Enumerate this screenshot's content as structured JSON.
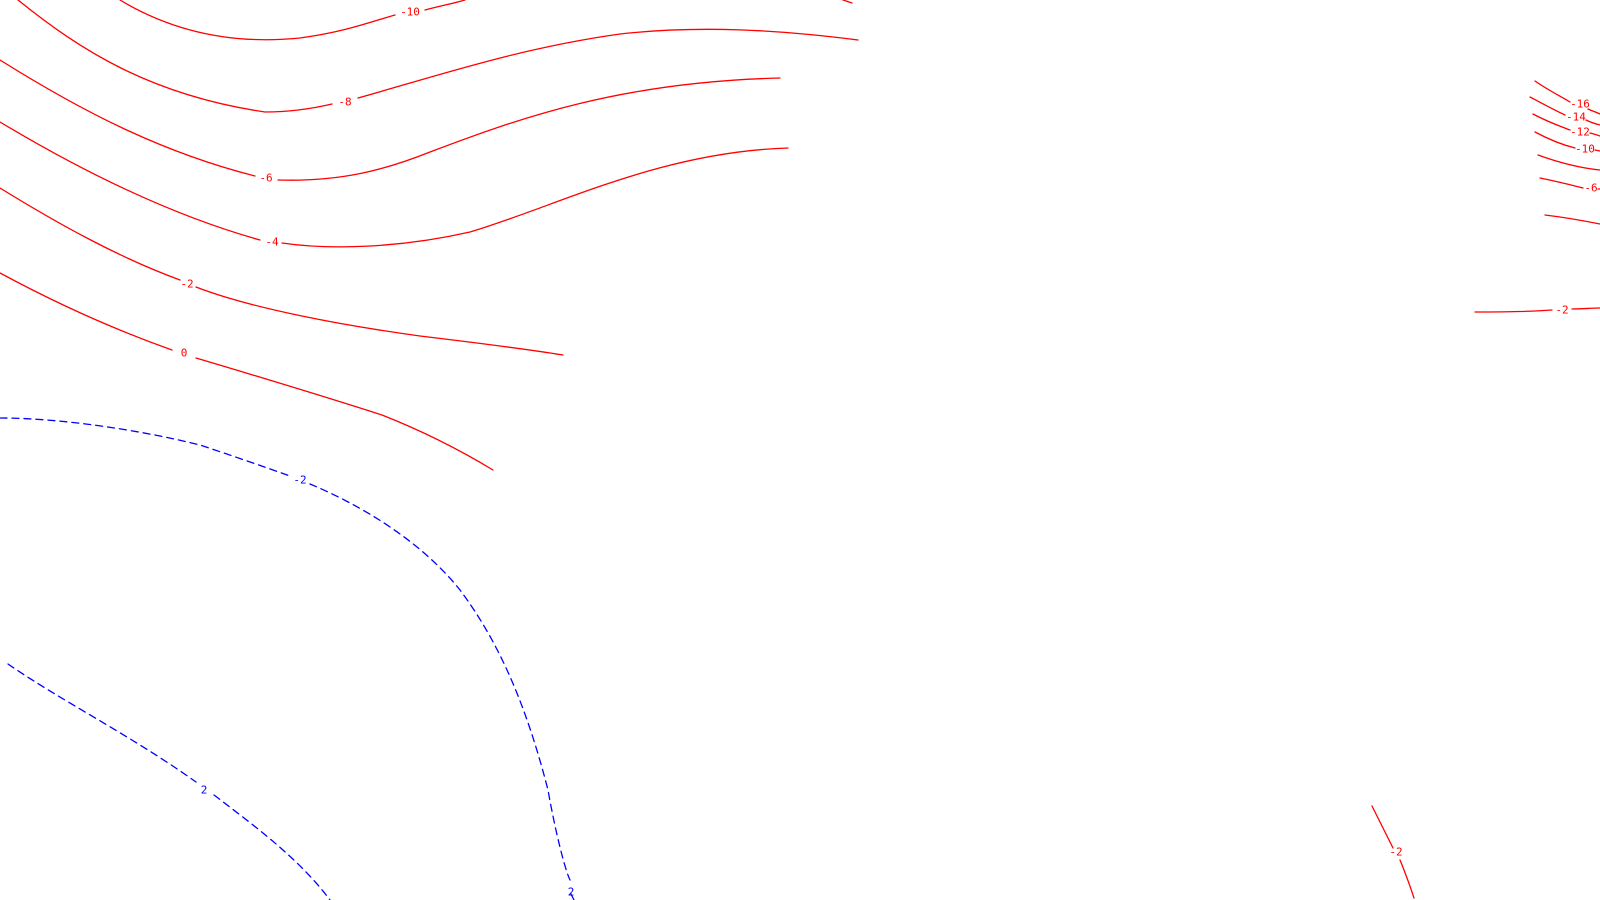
{
  "map": {
    "line_colors": {
      "solid": "#ff0000",
      "dashed": "#0000ff"
    },
    "contours": [
      {
        "id": "contour-a-neg10",
        "label": "-10",
        "style": "solid"
      },
      {
        "id": "contour-a-neg10-top-right-fragment",
        "label": "",
        "style": "solid"
      },
      {
        "id": "contour-a-neg8",
        "label": "-8",
        "style": "solid"
      },
      {
        "id": "contour-a-neg6",
        "label": "-6",
        "style": "solid"
      },
      {
        "id": "contour-a-neg4",
        "label": "-4",
        "style": "solid"
      },
      {
        "id": "contour-a-neg2",
        "label": "-2",
        "style": "solid"
      },
      {
        "id": "contour-a-zero",
        "label": "0",
        "style": "solid"
      },
      {
        "id": "contour-b-dashed-upper",
        "label": "-2",
        "style": "dashed"
      },
      {
        "id": "contour-b-dashed-upper-end",
        "label": "2",
        "style": "dashed"
      },
      {
        "id": "contour-b-dashed-lower",
        "label": "2",
        "style": "dashed"
      },
      {
        "id": "contour-c-neg16",
        "label": "-16",
        "style": "solid"
      },
      {
        "id": "contour-c-neg14",
        "label": "-14",
        "style": "solid"
      },
      {
        "id": "contour-c-neg12",
        "label": "-12",
        "style": "solid"
      },
      {
        "id": "contour-c-neg10",
        "label": "-10",
        "style": "solid"
      },
      {
        "id": "contour-c-unlabeled-1",
        "label": "",
        "style": "solid"
      },
      {
        "id": "contour-c-neg6",
        "label": "-6",
        "style": "solid"
      },
      {
        "id": "contour-c-unlabeled-2",
        "label": "",
        "style": "solid"
      },
      {
        "id": "contour-c-neg2",
        "label": "-2",
        "style": "solid"
      },
      {
        "id": "contour-d-neg2",
        "label": "-2",
        "style": "solid"
      }
    ]
  }
}
